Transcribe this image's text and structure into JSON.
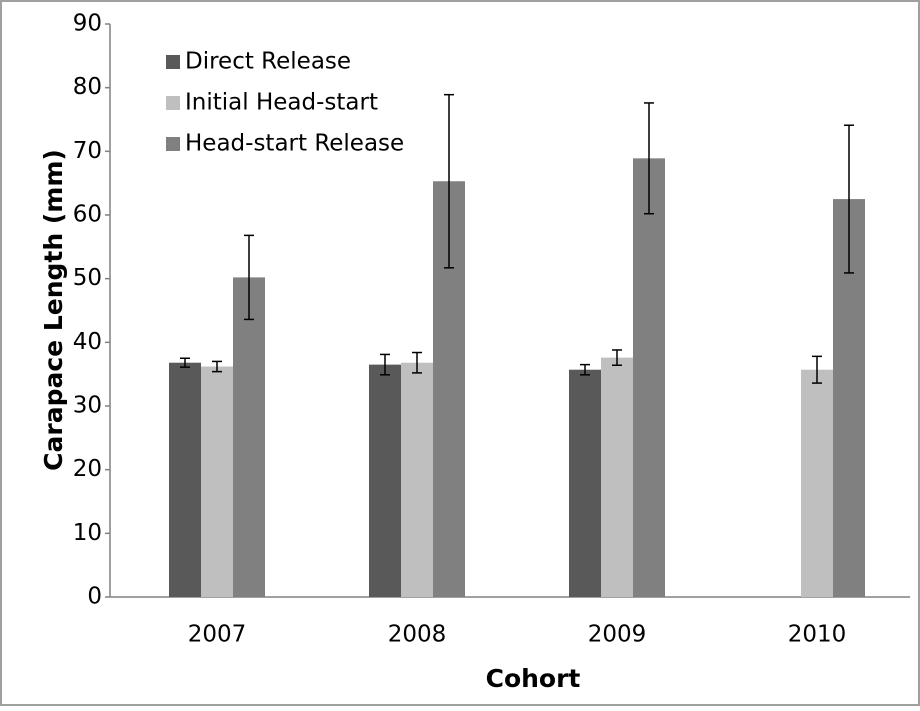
{
  "chart_data": {
    "type": "bar",
    "x_label": "Cohort",
    "y_label": "Carapace Length (mm)",
    "categories": [
      "2007",
      "2008",
      "2009",
      "2010"
    ],
    "series": [
      {
        "name": "Direct Release",
        "color": "#595959",
        "values": [
          36.8,
          36.5,
          35.7,
          null
        ],
        "errors": [
          0.7,
          1.6,
          0.8,
          null
        ]
      },
      {
        "name": "Initial Head-start",
        "color": "#bfbfbf",
        "values": [
          36.2,
          36.8,
          37.6,
          35.7
        ],
        "errors": [
          0.8,
          1.6,
          1.2,
          2.1
        ]
      },
      {
        "name": "Head-start Release",
        "color": "#808080",
        "values": [
          50.2,
          65.3,
          68.9,
          62.5
        ],
        "errors": [
          6.6,
          13.6,
          8.7,
          11.6
        ]
      }
    ],
    "ylim": [
      0,
      90
    ],
    "yticks": [
      0,
      10,
      20,
      30,
      40,
      50,
      60,
      70,
      80,
      90
    ],
    "legend": "top-left"
  }
}
